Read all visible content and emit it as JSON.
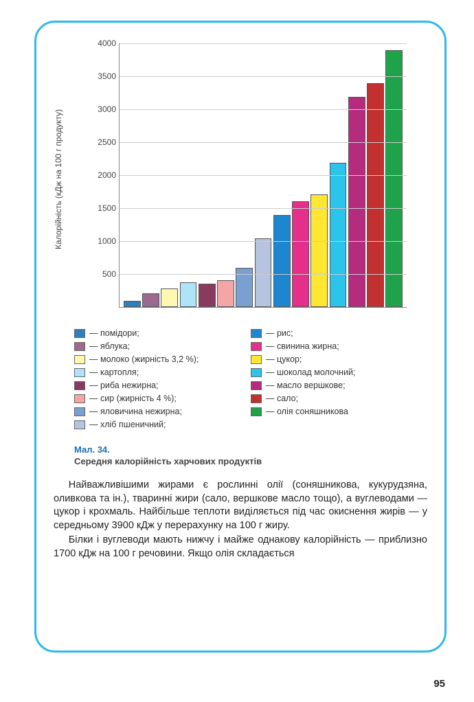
{
  "chart": {
    "type": "bar",
    "y_axis_label": "Калорійність (кДж на 100 г продукту)",
    "ylim": [
      0,
      4000
    ],
    "ytick_step": 500,
    "yticks": [
      500,
      1000,
      1500,
      2000,
      2500,
      3000,
      3500,
      4000
    ],
    "grid_color": "#cccccc",
    "axis_color": "#888888",
    "background_color": "#ffffff",
    "label_fontsize": 12,
    "bars": [
      {
        "label": "помідори",
        "value": 90,
        "color": "#2f7fbf"
      },
      {
        "label": "яблука",
        "value": 210,
        "color": "#9a6b8f"
      },
      {
        "label": "молоко (жирність 3,2 %)",
        "value": 280,
        "color": "#fff8b0"
      },
      {
        "label": "картопля",
        "value": 370,
        "color": "#aee3fa"
      },
      {
        "label": "риба нежирна",
        "value": 350,
        "color": "#8a3a5e"
      },
      {
        "label": "сир (жирність 4 %)",
        "value": 410,
        "color": "#f4a6a6"
      },
      {
        "label": "яловичина нежирна",
        "value": 590,
        "color": "#7a9fd1"
      },
      {
        "label": "хліб пшеничний",
        "value": 1040,
        "color": "#b7c4e0"
      },
      {
        "label": "рис",
        "value": 1400,
        "color": "#1c86d1"
      },
      {
        "label": "свинина жирна",
        "value": 1600,
        "color": "#e62e8b"
      },
      {
        "label": "цукор",
        "value": 1710,
        "color": "#ffe733"
      },
      {
        "label": "шоколад молочний",
        "value": 2190,
        "color": "#2bc4ea"
      },
      {
        "label": "масло вершкове",
        "value": 3190,
        "color": "#b52c7f"
      },
      {
        "label": "сало",
        "value": 3400,
        "color": "#c23030"
      },
      {
        "label": "олія соняшникова",
        "value": 3900,
        "color": "#1fa34a"
      }
    ]
  },
  "legend": {
    "left": [
      {
        "color": "#2f7fbf",
        "text": "— помідори;"
      },
      {
        "color": "#9a6b8f",
        "text": "— яблука;"
      },
      {
        "color": "#fff8b0",
        "text": "— молоко (жирність 3,2 %);"
      },
      {
        "color": "#aee3fa",
        "text": "— картопля;"
      },
      {
        "color": "#8a3a5e",
        "text": "— риба нежирна;"
      },
      {
        "color": "#f4a6a6",
        "text": "— сир (жирність 4 %);"
      },
      {
        "color": "#7a9fd1",
        "text": "— яловичина нежирна;"
      },
      {
        "color": "#b7c4e0",
        "text": "— хліб пшеничний;"
      }
    ],
    "right": [
      {
        "color": "#1c86d1",
        "text": "— рис;"
      },
      {
        "color": "#e62e8b",
        "text": "— свинина жирна;"
      },
      {
        "color": "#ffe733",
        "text": "— цукор;"
      },
      {
        "color": "#2bc4ea",
        "text": "— шоколад молочний;"
      },
      {
        "color": "#b52c7f",
        "text": "— масло вершкове;"
      },
      {
        "color": "#c23030",
        "text": "— сало;"
      },
      {
        "color": "#1fa34a",
        "text": "— олія соняшникова"
      }
    ]
  },
  "caption": {
    "number": "Мал. 34.",
    "text": "Середня калорійність харчових продуктів"
  },
  "body": {
    "p1": "Найважливішими жирами є рослинні олії (соняшникова, куку­рудзяна, оливкова та ін.), тваринні жири (сало, вершкове масло тощо), а вуглеводами — цукор і крохмаль. Найбільше теплоти виді­ляється під час окиснення жирів — у середньому 3900 кДж у пере­рахунку на 100 г жиру.",
    "p2": "Білки і вуглеводи мають нижчу і майже однакову калорійність — приблизно 1700 кДж на 100 г речовини. Якщо олія складається"
  },
  "page_number": "95",
  "frame_border_color": "#2bb9ef"
}
